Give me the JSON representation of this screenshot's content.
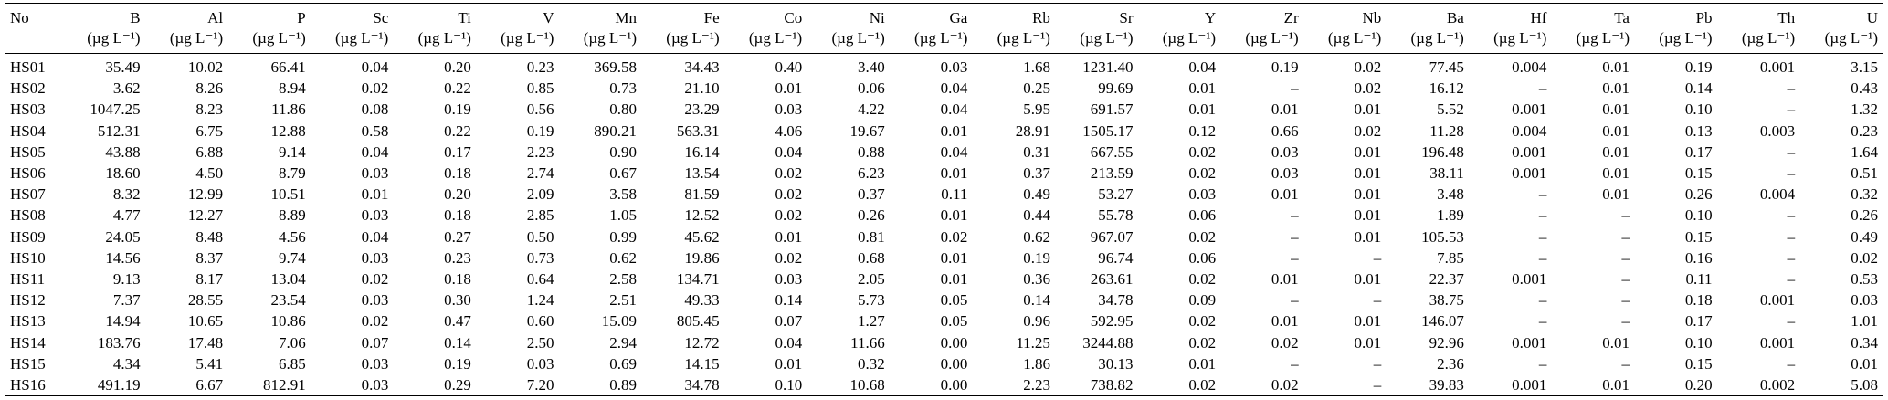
{
  "table": {
    "name": "trace-element-concentrations",
    "columns": [
      {
        "label": "No",
        "unit": ""
      },
      {
        "label": "B",
        "unit": "(µg L⁻¹)"
      },
      {
        "label": "Al",
        "unit": "(µg L⁻¹)"
      },
      {
        "label": "P",
        "unit": "(µg L⁻¹)"
      },
      {
        "label": "Sc",
        "unit": "(µg L⁻¹)"
      },
      {
        "label": "Ti",
        "unit": "(µg L⁻¹)"
      },
      {
        "label": "V",
        "unit": "(µg L⁻¹)"
      },
      {
        "label": "Mn",
        "unit": "(µg L⁻¹)"
      },
      {
        "label": "Fe",
        "unit": "(µg L⁻¹)"
      },
      {
        "label": "Co",
        "unit": "(µg L⁻¹)"
      },
      {
        "label": "Ni",
        "unit": "(µg L⁻¹)"
      },
      {
        "label": "Ga",
        "unit": "(µg L⁻¹)"
      },
      {
        "label": "Rb",
        "unit": "(µg L⁻¹)"
      },
      {
        "label": "Sr",
        "unit": "(µg L⁻¹)"
      },
      {
        "label": "Y",
        "unit": "(µg L⁻¹)"
      },
      {
        "label": "Zr",
        "unit": "(µg L⁻¹)"
      },
      {
        "label": "Nb",
        "unit": "(µg L⁻¹)"
      },
      {
        "label": "Ba",
        "unit": "(µg L⁻¹)"
      },
      {
        "label": "Hf",
        "unit": "(µg L⁻¹)"
      },
      {
        "label": "Ta",
        "unit": "(µg L⁻¹)"
      },
      {
        "label": "Pb",
        "unit": "(µg L⁻¹)"
      },
      {
        "label": "Th",
        "unit": "(µg L⁻¹)"
      },
      {
        "label": "U",
        "unit": "(µg L⁻¹)"
      }
    ],
    "rows": [
      [
        "HS01",
        "35.49",
        "10.02",
        "66.41",
        "0.04",
        "0.20",
        "0.23",
        "369.58",
        "34.43",
        "0.40",
        "3.40",
        "0.03",
        "1.68",
        "1231.40",
        "0.04",
        "0.19",
        "0.02",
        "77.45",
        "0.004",
        "0.01",
        "0.19",
        "0.001",
        "3.15"
      ],
      [
        "HS02",
        "3.62",
        "8.26",
        "8.94",
        "0.02",
        "0.22",
        "0.85",
        "0.73",
        "21.10",
        "0.01",
        "0.06",
        "0.04",
        "0.25",
        "99.69",
        "0.01",
        "–",
        "0.02",
        "16.12",
        "–",
        "0.01",
        "0.14",
        "–",
        "0.43"
      ],
      [
        "HS03",
        "1047.25",
        "8.23",
        "11.86",
        "0.08",
        "0.19",
        "0.56",
        "0.80",
        "23.29",
        "0.03",
        "4.22",
        "0.04",
        "5.95",
        "691.57",
        "0.01",
        "0.01",
        "0.01",
        "5.52",
        "0.001",
        "0.01",
        "0.10",
        "–",
        "1.32"
      ],
      [
        "HS04",
        "512.31",
        "6.75",
        "12.88",
        "0.58",
        "0.22",
        "0.19",
        "890.21",
        "563.31",
        "4.06",
        "19.67",
        "0.01",
        "28.91",
        "1505.17",
        "0.12",
        "0.66",
        "0.02",
        "11.28",
        "0.004",
        "0.01",
        "0.13",
        "0.003",
        "0.23"
      ],
      [
        "HS05",
        "43.88",
        "6.88",
        "9.14",
        "0.04",
        "0.17",
        "2.23",
        "0.90",
        "16.14",
        "0.04",
        "0.88",
        "0.04",
        "0.31",
        "667.55",
        "0.02",
        "0.03",
        "0.01",
        "196.48",
        "0.001",
        "0.01",
        "0.17",
        "–",
        "1.64"
      ],
      [
        "HS06",
        "18.60",
        "4.50",
        "8.79",
        "0.03",
        "0.18",
        "2.74",
        "0.67",
        "13.54",
        "0.02",
        "6.23",
        "0.01",
        "0.37",
        "213.59",
        "0.02",
        "0.03",
        "0.01",
        "38.11",
        "0.001",
        "0.01",
        "0.15",
        "–",
        "0.51"
      ],
      [
        "HS07",
        "8.32",
        "12.99",
        "10.51",
        "0.01",
        "0.20",
        "2.09",
        "3.58",
        "81.59",
        "0.02",
        "0.37",
        "0.11",
        "0.49",
        "53.27",
        "0.03",
        "0.01",
        "0.01",
        "3.48",
        "–",
        "0.01",
        "0.26",
        "0.004",
        "0.32"
      ],
      [
        "HS08",
        "4.77",
        "12.27",
        "8.89",
        "0.03",
        "0.18",
        "2.85",
        "1.05",
        "12.52",
        "0.02",
        "0.26",
        "0.01",
        "0.44",
        "55.78",
        "0.06",
        "–",
        "0.01",
        "1.89",
        "–",
        "–",
        "0.10",
        "–",
        "0.26"
      ],
      [
        "HS09",
        "24.05",
        "8.48",
        "4.56",
        "0.04",
        "0.27",
        "0.50",
        "0.99",
        "45.62",
        "0.01",
        "0.81",
        "0.02",
        "0.62",
        "967.07",
        "0.02",
        "–",
        "0.01",
        "105.53",
        "–",
        "–",
        "0.15",
        "–",
        "0.49"
      ],
      [
        "HS10",
        "14.56",
        "8.37",
        "9.74",
        "0.03",
        "0.23",
        "0.73",
        "0.62",
        "19.86",
        "0.02",
        "0.68",
        "0.01",
        "0.19",
        "96.74",
        "0.06",
        "–",
        "–",
        "7.85",
        "–",
        "–",
        "0.16",
        "–",
        "0.02"
      ],
      [
        "HS11",
        "9.13",
        "8.17",
        "13.04",
        "0.02",
        "0.18",
        "0.64",
        "2.58",
        "134.71",
        "0.03",
        "2.05",
        "0.01",
        "0.36",
        "263.61",
        "0.02",
        "0.01",
        "0.01",
        "22.37",
        "0.001",
        "–",
        "0.11",
        "–",
        "0.53"
      ],
      [
        "HS12",
        "7.37",
        "28.55",
        "23.54",
        "0.03",
        "0.30",
        "1.24",
        "2.51",
        "49.33",
        "0.14",
        "5.73",
        "0.05",
        "0.14",
        "34.78",
        "0.09",
        "–",
        "–",
        "38.75",
        "–",
        "–",
        "0.18",
        "0.001",
        "0.03"
      ],
      [
        "HS13",
        "14.94",
        "10.65",
        "10.86",
        "0.02",
        "0.47",
        "0.60",
        "15.09",
        "805.45",
        "0.07",
        "1.27",
        "0.05",
        "0.96",
        "592.95",
        "0.02",
        "0.01",
        "0.01",
        "146.07",
        "–",
        "–",
        "0.17",
        "–",
        "1.01"
      ],
      [
        "HS14",
        "183.76",
        "17.48",
        "7.06",
        "0.07",
        "0.14",
        "2.50",
        "2.94",
        "12.72",
        "0.04",
        "11.66",
        "0.00",
        "11.25",
        "3244.88",
        "0.02",
        "0.02",
        "0.01",
        "92.96",
        "0.001",
        "0.01",
        "0.10",
        "0.001",
        "0.34"
      ],
      [
        "HS15",
        "4.34",
        "5.41",
        "6.85",
        "0.03",
        "0.19",
        "0.03",
        "0.69",
        "14.15",
        "0.01",
        "0.32",
        "0.00",
        "1.86",
        "30.13",
        "0.01",
        "–",
        "–",
        "2.36",
        "–",
        "–",
        "0.15",
        "–",
        "0.01"
      ],
      [
        "HS16",
        "491.19",
        "6.67",
        "812.91",
        "0.03",
        "0.29",
        "7.20",
        "0.89",
        "34.78",
        "0.10",
        "10.68",
        "0.00",
        "2.23",
        "738.82",
        "0.02",
        "0.02",
        "–",
        "39.83",
        "0.001",
        "0.01",
        "0.20",
        "0.002",
        "5.08"
      ]
    ]
  }
}
